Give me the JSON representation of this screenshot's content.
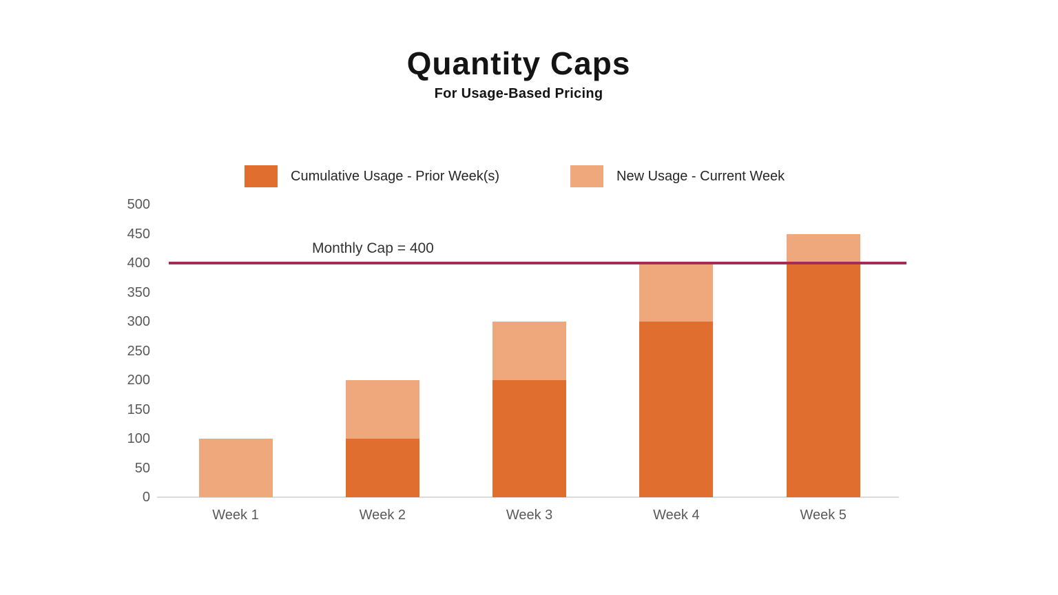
{
  "page": {
    "background": "#ffffff"
  },
  "header": {
    "title": "Quantity Caps",
    "subtitle": "For Usage-Based Pricing"
  },
  "legend": [
    {
      "label": "Cumulative Usage - Prior Week(s)",
      "color": "#E06E2E"
    },
    {
      "label": "New Usage - Current Week",
      "color": "#EFA77C"
    }
  ],
  "cap_line": {
    "label": "Monthly Cap = 400",
    "value": 400,
    "color": "#A42D56"
  },
  "colors": {
    "axis_text": "#595959",
    "axis_line": "#DBDBDB",
    "title_text": "#141414",
    "legend_text": "#262626"
  },
  "chart_data": {
    "type": "bar",
    "stacked": true,
    "title": "Quantity Caps",
    "subtitle": "For Usage-Based Pricing",
    "categories": [
      "Week 1",
      "Week 2",
      "Week 3",
      "Week 4",
      "Week 5"
    ],
    "series": [
      {
        "name": "Cumulative Usage - Prior Week(s)",
        "color": "#E06E2E",
        "values": [
          0,
          100,
          200,
          300,
          400
        ]
      },
      {
        "name": "New Usage - Current Week",
        "color": "#EFA77C",
        "values": [
          100,
          100,
          100,
          100,
          50
        ]
      }
    ],
    "totals": [
      100,
      200,
      300,
      400,
      450
    ],
    "yticks": [
      0,
      50,
      100,
      150,
      200,
      250,
      300,
      350,
      400,
      450,
      500
    ],
    "ylim": [
      0,
      500
    ],
    "xlabel": "",
    "ylabel": "",
    "grid": false,
    "legend_position": "top",
    "annotation": {
      "text": "Monthly Cap = 400",
      "y": 400,
      "color": "#A42D56"
    }
  }
}
